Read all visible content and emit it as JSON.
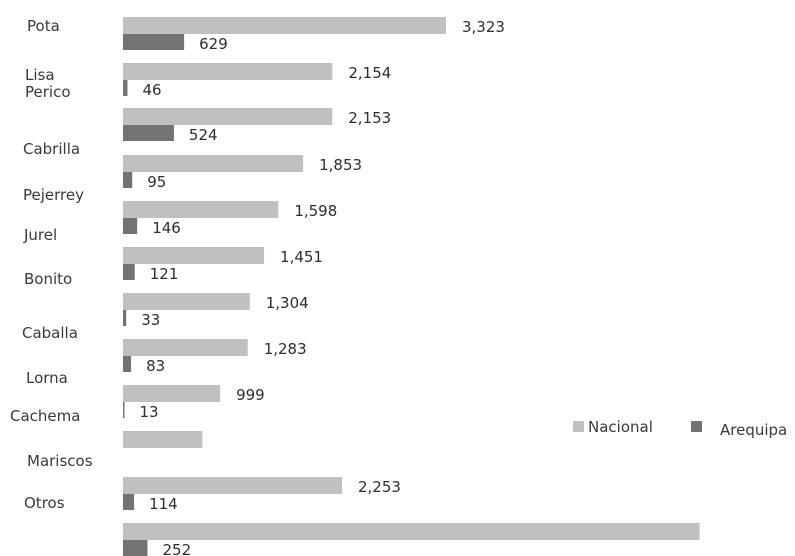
{
  "chart_data": {
    "type": "bar",
    "orientation": "horizontal",
    "category_labels": [
      "Pota",
      "Lisa",
      "Perico",
      "Cabrilla",
      "Pejerrey",
      "Jurel",
      "Bonito",
      "Caballa",
      "Lorna",
      "Cachema",
      "Mariscos",
      "Otros"
    ],
    "series": [
      {
        "name": "Nacional",
        "color": "#c0c0c0",
        "values": [
          3323,
          2154,
          2153,
          1853,
          1598,
          1451,
          1304,
          1283,
          999,
          816,
          2253,
          5932
        ],
        "labels": [
          "3,323",
          "2,154",
          "2,153",
          "1,853",
          "1,598",
          "1,451",
          "1,304",
          "1,283",
          "999",
          "",
          "2,253",
          ""
        ]
      },
      {
        "name": "Arequipa",
        "color": "#737373",
        "values": [
          629,
          46,
          524,
          95,
          146,
          121,
          33,
          83,
          13,
          0,
          114,
          252
        ],
        "labels": [
          "629",
          "46",
          "524",
          "95",
          "146",
          "121",
          "33",
          "83",
          "13",
          "",
          "114",
          "252"
        ]
      }
    ],
    "legend": {
      "position": "right",
      "entries": [
        "Nacional",
        "Arequipa"
      ]
    },
    "grid": false
  }
}
